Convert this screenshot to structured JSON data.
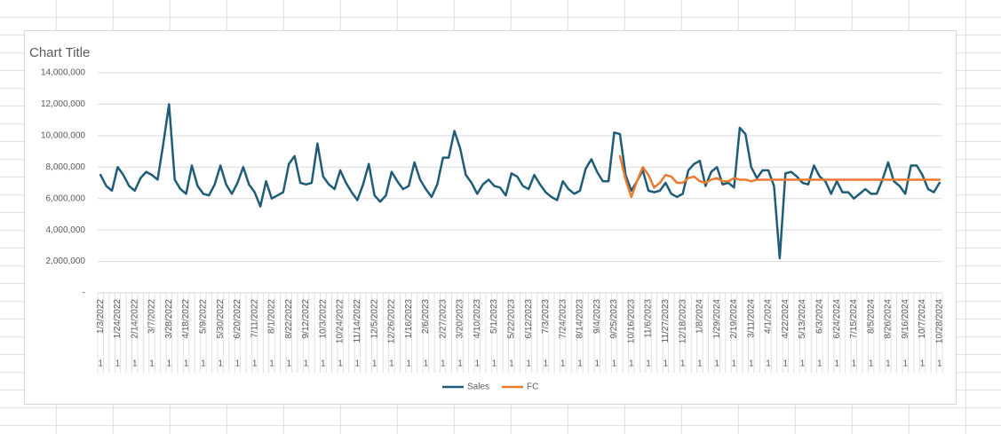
{
  "chart_data": {
    "type": "line",
    "title": "Chart Title",
    "categories": [
      "1/3/2022",
      null,
      null,
      "1/24/2022",
      null,
      null,
      "2/14/2022",
      null,
      null,
      "3/7/2022",
      null,
      null,
      "3/28/2022",
      null,
      null,
      "4/18/2022",
      null,
      null,
      "5/9/2022",
      null,
      null,
      "5/30/2022",
      null,
      null,
      "6/20/2022",
      null,
      null,
      "7/11/2022",
      null,
      null,
      "8/1/2022",
      null,
      null,
      "8/22/2022",
      null,
      null,
      "9/12/2022",
      null,
      null,
      "10/3/2022",
      null,
      null,
      "10/24/2022",
      null,
      null,
      "11/14/2022",
      null,
      null,
      "12/5/2022",
      null,
      null,
      "12/26/2022",
      null,
      null,
      "1/16/2023",
      null,
      null,
      "2/6/2023",
      null,
      null,
      "2/27/2023",
      null,
      null,
      "3/20/2023",
      null,
      null,
      "4/10/2023",
      null,
      null,
      "5/1/2023",
      null,
      null,
      "5/22/2023",
      null,
      null,
      "6/12/2023",
      null,
      null,
      "7/3/2023",
      null,
      null,
      "7/24/2023",
      null,
      null,
      "8/14/2023",
      null,
      null,
      "9/4/2023",
      null,
      null,
      "9/25/2023",
      null,
      null,
      "10/16/2023",
      null,
      null,
      "11/6/2023",
      null,
      null,
      "11/27/2023",
      null,
      null,
      "12/18/2023",
      null,
      null,
      "1/8/2024",
      null,
      null,
      "1/29/2024",
      null,
      null,
      "2/19/2024",
      null,
      null,
      "3/11/2024",
      null,
      null,
      "4/1/2024",
      null,
      null,
      "4/22/2024",
      null,
      null,
      "5/13/2024",
      null,
      null,
      "6/3/2024",
      null,
      null,
      "6/24/2024",
      null,
      null,
      "7/15/2024",
      null,
      null,
      "8/5/2024",
      null,
      null,
      "8/26/2024",
      null,
      null,
      "9/16/2024",
      null,
      null,
      "10/7/2024",
      null,
      null,
      "10/28/2024"
    ],
    "category_sublabels": [
      "1",
      null,
      null,
      "1",
      null,
      null,
      "1",
      null,
      null,
      "1",
      null,
      null,
      "1",
      null,
      null,
      "1",
      null,
      null,
      "1",
      null,
      null,
      "1",
      null,
      null,
      "1",
      null,
      null,
      "1",
      null,
      null,
      "1",
      null,
      null,
      "1",
      null,
      null,
      "1",
      null,
      null,
      "1",
      null,
      null,
      "1",
      null,
      null,
      "1",
      null,
      null,
      "1",
      null,
      null,
      "1",
      null,
      null,
      "1",
      null,
      null,
      "1",
      null,
      null,
      "1",
      null,
      null,
      "1",
      null,
      null,
      "1",
      null,
      null,
      "1",
      null,
      null,
      "1",
      null,
      null,
      "1",
      null,
      null,
      "1",
      null,
      null,
      "1",
      null,
      null,
      "1",
      null,
      null,
      "1",
      null,
      null,
      "1",
      null,
      null,
      "1",
      null,
      null,
      "1",
      null,
      null,
      "1",
      null,
      null,
      "1",
      null,
      null,
      "1",
      null,
      null,
      "1",
      null,
      null,
      "1",
      null,
      null,
      "1",
      null,
      null,
      "1",
      null,
      null,
      "1",
      null,
      null,
      "1",
      null,
      null,
      "1",
      null,
      null,
      "1",
      null,
      null,
      "1",
      null,
      null,
      "1",
      null,
      null,
      "1",
      null,
      null,
      "1",
      null,
      null,
      "1",
      null,
      null,
      "1"
    ],
    "series": [
      {
        "name": "Sales",
        "color": "#1f5c78",
        "values": [
          7500000,
          6800000,
          6500000,
          8000000,
          7500000,
          6800000,
          6500000,
          7300000,
          7700000,
          7500000,
          7200000,
          9500000,
          12000000,
          7200000,
          6600000,
          6300000,
          8100000,
          6800000,
          6300000,
          6200000,
          6900000,
          8100000,
          6900000,
          6300000,
          7000000,
          8000000,
          6900000,
          6400000,
          5500000,
          7100000,
          6000000,
          6200000,
          6400000,
          8200000,
          8700000,
          7000000,
          6900000,
          7000000,
          9500000,
          7400000,
          6900000,
          6600000,
          7800000,
          7000000,
          6400000,
          5900000,
          6900000,
          8200000,
          6200000,
          5800000,
          6200000,
          7700000,
          7100000,
          6600000,
          6800000,
          8300000,
          7200000,
          6600000,
          6100000,
          6900000,
          8600000,
          8600000,
          10300000,
          9200000,
          7500000,
          7000000,
          6300000,
          6900000,
          7200000,
          6800000,
          6700000,
          6200000,
          7600000,
          7400000,
          6800000,
          6600000,
          7500000,
          6900000,
          6400000,
          6100000,
          5900000,
          7100000,
          6600000,
          6300000,
          6500000,
          7900000,
          8500000,
          7700000,
          7100000,
          7100000,
          10200000,
          10100000,
          7500000,
          6500000,
          7100000,
          7800000,
          6500000,
          6400000,
          6500000,
          7000000,
          6300000,
          6100000,
          6300000,
          7800000,
          8200000,
          8400000,
          6800000,
          7700000,
          8000000,
          6900000,
          7000000,
          6700000,
          10500000,
          10100000,
          8000000,
          7300000,
          7800000,
          7800000,
          6800000,
          2200000,
          7600000,
          7700000,
          7400000,
          7000000,
          6900000,
          8100000,
          7400000,
          7100000,
          6300000,
          7100000,
          6400000,
          6400000,
          6000000,
          6300000,
          6600000,
          6300000,
          6300000,
          7200000,
          8300000,
          7100000,
          6800000,
          6300000,
          8100000,
          8100000,
          7500000,
          6600000,
          6400000,
          7000000
        ]
      },
      {
        "name": "FC",
        "color": "#e97a2e",
        "values": [
          null,
          null,
          null,
          null,
          null,
          null,
          null,
          null,
          null,
          null,
          null,
          null,
          null,
          null,
          null,
          null,
          null,
          null,
          null,
          null,
          null,
          null,
          null,
          null,
          null,
          null,
          null,
          null,
          null,
          null,
          null,
          null,
          null,
          null,
          null,
          null,
          null,
          null,
          null,
          null,
          null,
          null,
          null,
          null,
          null,
          null,
          null,
          null,
          null,
          null,
          null,
          null,
          null,
          null,
          null,
          null,
          null,
          null,
          null,
          null,
          null,
          null,
          null,
          null,
          null,
          null,
          null,
          null,
          null,
          null,
          null,
          null,
          null,
          null,
          null,
          null,
          null,
          null,
          null,
          null,
          null,
          null,
          null,
          null,
          null,
          null,
          null,
          null,
          null,
          null,
          null,
          8700000,
          7200000,
          6100000,
          7100000,
          8000000,
          7500000,
          6700000,
          7000000,
          7500000,
          7400000,
          7000000,
          7000000,
          7300000,
          7400000,
          7100000,
          7000000,
          7200000,
          7300000,
          7100000,
          7100000,
          7300000,
          7200000,
          7200000,
          7100000,
          7200000,
          7200000,
          7200000,
          7200000,
          7200000,
          7200000,
          7200000,
          7200000,
          7200000,
          7200000,
          7200000,
          7200000,
          7200000,
          7200000,
          7200000,
          7200000,
          7200000,
          7200000,
          7200000,
          7200000,
          7200000,
          7200000,
          7200000,
          7200000,
          7200000,
          7200000,
          7200000,
          7200000,
          7200000,
          7200000,
          7200000,
          7200000,
          7200000
        ]
      }
    ],
    "ylim": [
      0,
      14000000
    ],
    "yticks": [
      {
        "value": 0,
        "label": "-"
      },
      {
        "value": 2000000,
        "label": "2,000,000"
      },
      {
        "value": 4000000,
        "label": "4,000,000"
      },
      {
        "value": 6000000,
        "label": "6,000,000"
      },
      {
        "value": 8000000,
        "label": "8,000,000"
      },
      {
        "value": 10000000,
        "label": "10,000,000"
      },
      {
        "value": 12000000,
        "label": "12,000,000"
      },
      {
        "value": 14000000,
        "label": "14,000,000"
      }
    ],
    "grid": true,
    "legend": "bottom"
  }
}
